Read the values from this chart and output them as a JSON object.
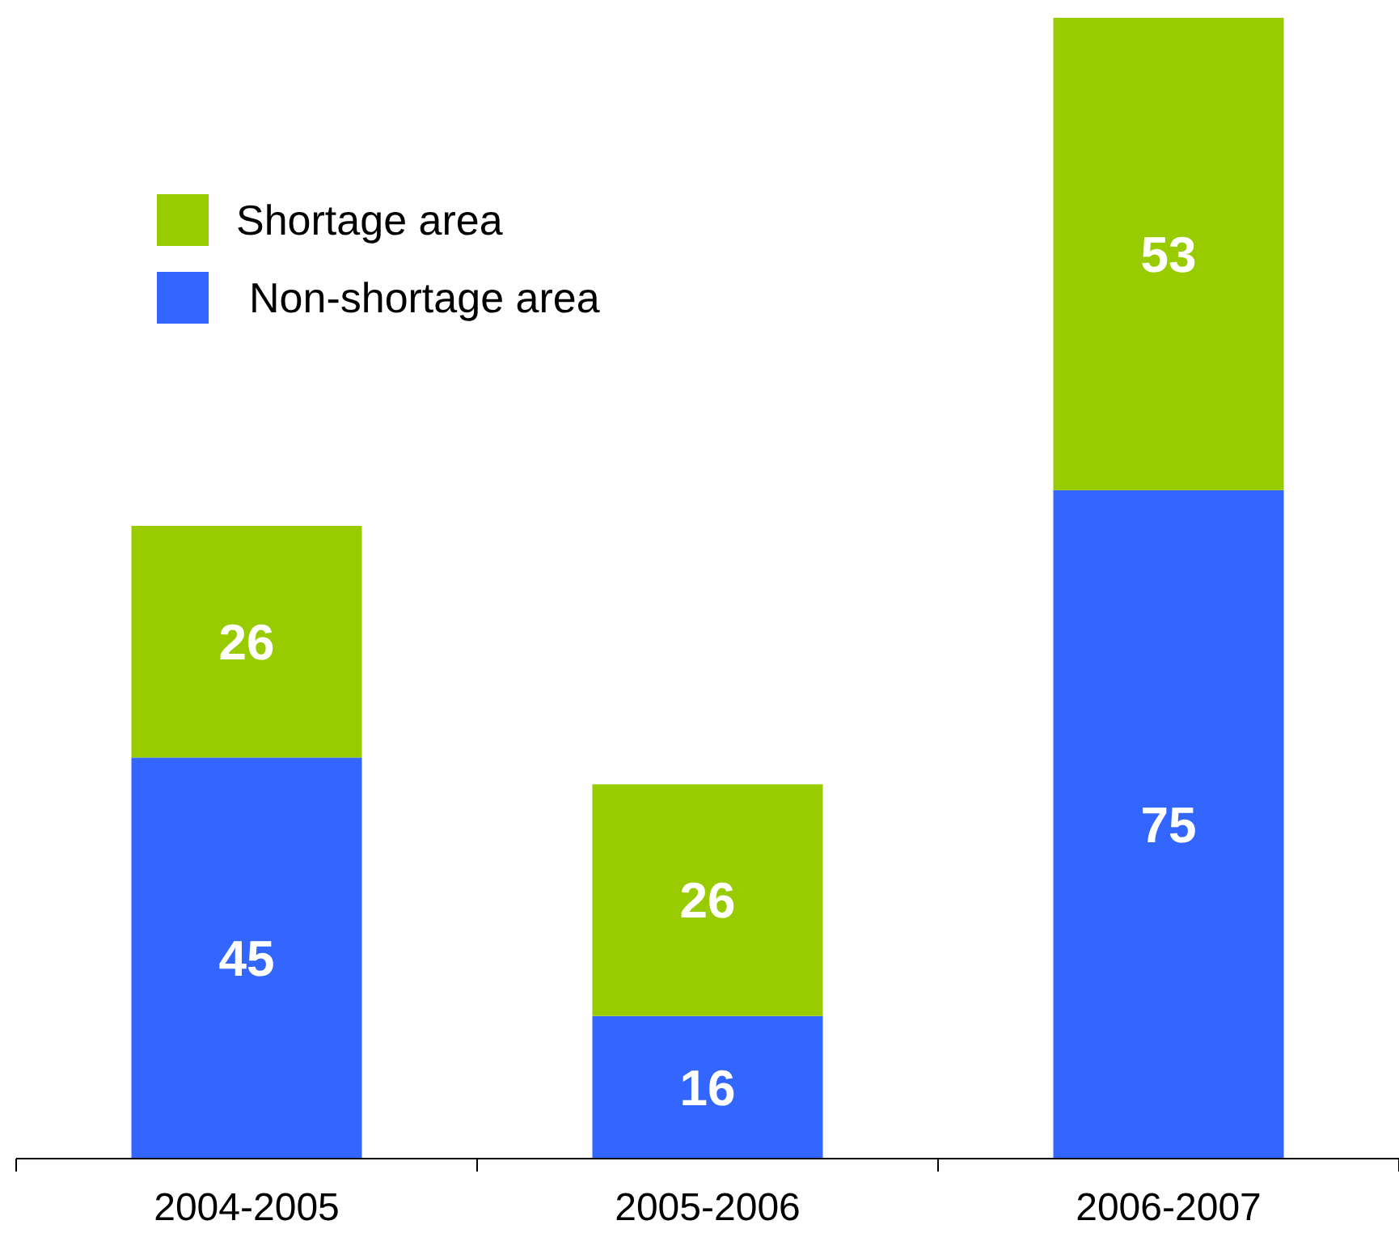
{
  "chart_data": {
    "type": "bar",
    "stacked": true,
    "categories": [
      "2004-2005",
      "2005-2006",
      "2006-2007"
    ],
    "series": [
      {
        "name": "Non-shortage area",
        "color": "#3366ff",
        "values": [
          45,
          16,
          75
        ]
      },
      {
        "name": "Shortage area",
        "color": "#99cc00",
        "values": [
          26,
          26,
          53
        ]
      }
    ],
    "data_labels": true,
    "legend": "top left",
    "grid": false
  }
}
